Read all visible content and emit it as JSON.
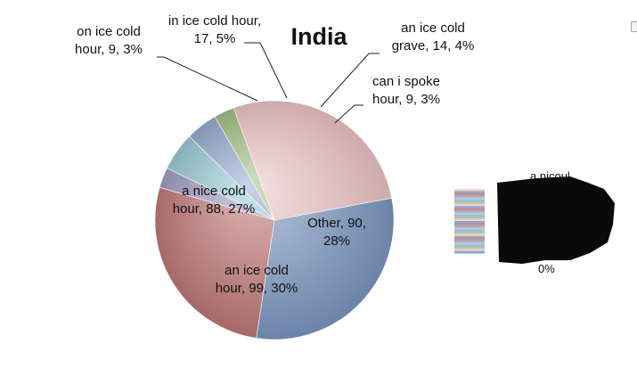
{
  "chart_data": {
    "type": "pie",
    "title": "India",
    "slices": [
      {
        "name": "Other",
        "value": 90,
        "percent": "28%",
        "color": "#f3c9c9",
        "label_lines": [
          "Other, 90,",
          "28%"
        ]
      },
      {
        "name": "an ice cold hour",
        "value": 99,
        "percent": "30%",
        "color": "#7f9bc7",
        "label_lines": [
          "an ice cold",
          "hour, 99, 30%"
        ]
      },
      {
        "name": "a nice cold hour",
        "value": 88,
        "percent": "27%",
        "color": "#c47c7a",
        "label_lines": [
          "a nice cold",
          "hour, 88, 27%"
        ]
      },
      {
        "name": "on ice cold hour",
        "value": 9,
        "percent": "3%",
        "color": "#a6a1c6",
        "label_lines": [
          "on ice cold",
          "hour, 9, 3%"
        ]
      },
      {
        "name": "in ice cold hour",
        "value": 17,
        "percent": "5%",
        "color": "#9ecfd8",
        "label_lines": [
          "in ice cold hour,",
          "17, 5%"
        ]
      },
      {
        "name": "an ice cold grave",
        "value": 14,
        "percent": "4%",
        "color": "#9aaed6",
        "label_lines": [
          "an ice cold",
          "grave, 14, 4%"
        ]
      },
      {
        "name": "can i spoke hour",
        "value": 9,
        "percent": "3%",
        "color": "#a7c48a",
        "label_lines": [
          "can i spoke",
          "hour, 9, 3%"
        ]
      }
    ],
    "legend_position": "right",
    "legend_fragments": [
      "a nicoul",
      "0%"
    ]
  }
}
